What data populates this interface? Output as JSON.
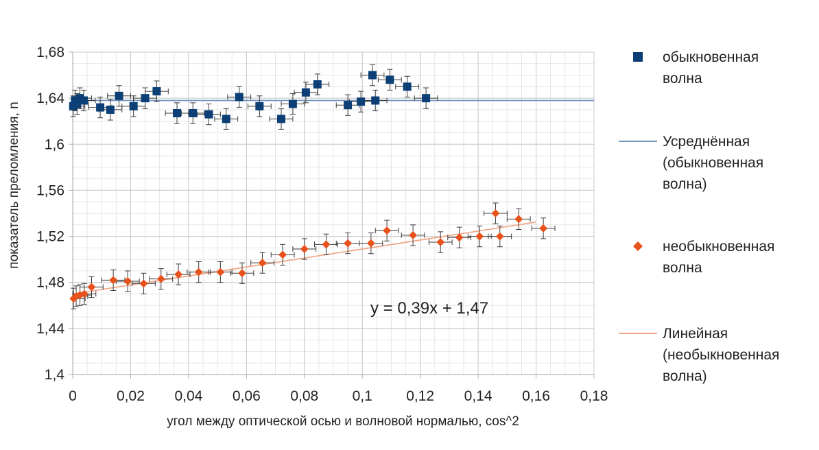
{
  "chart_data": {
    "type": "scatter",
    "xlabel": "угол между оптической осью и волновой нормалью, cos^2",
    "ylabel": "показатель преломления, n",
    "xlim": [
      0,
      0.18
    ],
    "ylim": [
      1.4,
      1.68
    ],
    "x_ticks": [
      0,
      0.02,
      0.04,
      0.06,
      0.08,
      0.1,
      0.12,
      0.14,
      0.16,
      0.18
    ],
    "x_tick_labels": [
      "0",
      "0,02",
      "0,04",
      "0,06",
      "0,08",
      "0,1",
      "0,12",
      "0,14",
      "0,16",
      "0,18"
    ],
    "y_ticks": [
      1.4,
      1.44,
      1.48,
      1.52,
      1.56,
      1.6,
      1.64,
      1.68
    ],
    "y_tick_labels": [
      "1,4",
      "1,44",
      "1,48",
      "1,52",
      "1,56",
      "1,6",
      "1,64",
      "1,68"
    ],
    "grid": true,
    "legend_position": "right",
    "annotation": "y = 0,39x + 1,47",
    "series": [
      {
        "name": "обыкновенная волна",
        "kind": "scatter",
        "marker": "square",
        "color": "#0b3f75",
        "x_error": 0.004,
        "y_error": 0.009,
        "x": [
          0.0002,
          0.0008,
          0.0015,
          0.0025,
          0.0038,
          0.0095,
          0.013,
          0.016,
          0.021,
          0.025,
          0.029,
          0.036,
          0.0415,
          0.047,
          0.053,
          0.0575,
          0.0645,
          0.072,
          0.076,
          0.0805,
          0.0845,
          0.095,
          0.0995,
          0.1035,
          0.1045,
          0.1095,
          0.1155,
          0.122
        ],
        "y": [
          1.633,
          1.638,
          1.635,
          1.64,
          1.638,
          1.632,
          1.63,
          1.642,
          1.633,
          1.64,
          1.646,
          1.627,
          1.627,
          1.626,
          1.622,
          1.641,
          1.633,
          1.622,
          1.635,
          1.645,
          1.652,
          1.634,
          1.637,
          1.66,
          1.638,
          1.656,
          1.65,
          1.64
        ]
      },
      {
        "name": "Усреднённая (обыкновенная волна)",
        "kind": "line",
        "color": "#7393bd",
        "x": [
          0,
          0.18
        ],
        "y": [
          1.638,
          1.638
        ]
      },
      {
        "name": "необыкновенная волна",
        "kind": "scatter",
        "marker": "diamond",
        "color": "#e8531d",
        "x_error": 0.004,
        "y_error": 0.009,
        "x": [
          0.0003,
          0.0012,
          0.0025,
          0.004,
          0.0065,
          0.014,
          0.019,
          0.0245,
          0.0305,
          0.0365,
          0.0435,
          0.051,
          0.0585,
          0.0655,
          0.0725,
          0.08,
          0.0875,
          0.095,
          0.103,
          0.1085,
          0.1175,
          0.127,
          0.1335,
          0.1405,
          0.146,
          0.1475,
          0.154,
          0.1625
        ],
        "y": [
          1.466,
          1.468,
          1.469,
          1.47,
          1.476,
          1.482,
          1.481,
          1.479,
          1.483,
          1.487,
          1.489,
          1.489,
          1.488,
          1.497,
          1.504,
          1.509,
          1.513,
          1.514,
          1.514,
          1.525,
          1.521,
          1.515,
          1.519,
          1.52,
          1.54,
          1.52,
          1.535,
          1.527
        ]
      },
      {
        "name": "Линейная (необыкновенная волна)",
        "kind": "line",
        "color": "#f2a88a",
        "x": [
          0,
          0.16
        ],
        "y": [
          1.47,
          1.5324
        ]
      }
    ],
    "legend": [
      {
        "kind": "square",
        "color": "#0b3f75",
        "lines": [
          "обыкновенная",
          "волна"
        ]
      },
      {
        "kind": "line",
        "color": "#7393bd",
        "lines": [
          "Усреднённая",
          "(обыкновенная",
          "волна)"
        ]
      },
      {
        "kind": "diamond",
        "color": "#e8531d",
        "lines": [
          "необыкновенная",
          "волна"
        ]
      },
      {
        "kind": "line",
        "color": "#f2a88a",
        "lines": [
          "Линейная",
          "(необыкновенная",
          "волна)"
        ]
      }
    ]
  }
}
